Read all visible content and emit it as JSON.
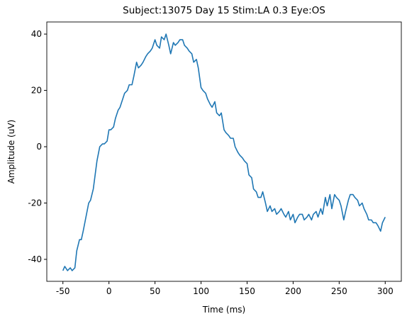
{
  "chart_data": {
    "type": "line",
    "title": "Subject:13075 Day 15 Stim:LA 0.3 Eye:OS",
    "xlabel": "Time (ms)",
    "ylabel": "Amplitude (uV)",
    "xlim": [
      -67.5,
      317.5
    ],
    "ylim": [
      -47.8,
      44.3
    ],
    "xticks": [
      -50,
      0,
      50,
      100,
      150,
      200,
      250,
      300
    ],
    "yticks": [
      -40,
      -20,
      0,
      20,
      40
    ],
    "series": [
      {
        "color": "#1f77b4",
        "x": [
          -50,
          -48,
          -45,
          -42,
          -40,
          -37,
          -35,
          -32,
          -30,
          -28,
          -25,
          -22,
          -20,
          -17,
          -15,
          -13,
          -10,
          -7,
          -5,
          -2,
          0,
          2,
          5,
          7,
          10,
          12,
          15,
          17,
          20,
          22,
          25,
          27,
          30,
          32,
          35,
          37,
          40,
          42,
          45,
          47,
          50,
          52,
          55,
          57,
          60,
          62,
          65,
          67,
          70,
          72,
          75,
          77,
          80,
          82,
          85,
          87,
          90,
          92,
          95,
          97,
          100,
          102,
          105,
          107,
          110,
          112,
          115,
          117,
          120,
          122,
          125,
          127,
          130,
          132,
          135,
          137,
          140,
          142,
          145,
          147,
          150,
          152,
          155,
          157,
          160,
          162,
          165,
          167,
          170,
          172,
          175,
          177,
          180,
          182,
          185,
          187,
          190,
          192,
          195,
          197,
          200,
          202,
          205,
          207,
          210,
          212,
          215,
          217,
          220,
          222,
          225,
          227,
          230,
          232,
          235,
          237,
          240,
          242,
          245,
          247,
          250,
          252,
          255,
          257,
          260,
          262,
          265,
          267,
          270,
          272,
          275,
          277,
          280,
          282,
          285,
          287,
          290,
          292,
          295,
          297,
          300
        ],
        "values": [
          -44,
          -42.5,
          -44,
          -43,
          -44,
          -43,
          -37,
          -33,
          -33,
          -30,
          -25,
          -20,
          -19,
          -15,
          -10,
          -5,
          0,
          1,
          1,
          2,
          6,
          6,
          7,
          10,
          13,
          14,
          17,
          19,
          20,
          22,
          22,
          25,
          30,
          28,
          29,
          30,
          32,
          33,
          34,
          35,
          38,
          36,
          35,
          39,
          38,
          40,
          36,
          33,
          37,
          36,
          37,
          38,
          38,
          36,
          35,
          34,
          33,
          30,
          31,
          28,
          21,
          20,
          19,
          17,
          15,
          14,
          16,
          12,
          11,
          12,
          6,
          5,
          4,
          3,
          3,
          0,
          -2,
          -3,
          -4,
          -5,
          -6,
          -10,
          -11,
          -15,
          -16,
          -18,
          -18,
          -16,
          -20,
          -23,
          -21,
          -23,
          -22,
          -24,
          -23,
          -22,
          -24,
          -25,
          -23,
          -26,
          -24,
          -27,
          -25,
          -24,
          -24,
          -26,
          -25,
          -24,
          -26,
          -24,
          -23,
          -25,
          -22,
          -24,
          -18,
          -21,
          -17,
          -22,
          -17,
          -18,
          -19,
          -21,
          -26,
          -23,
          -19,
          -17,
          -17,
          -18,
          -19,
          -21,
          -20,
          -22,
          -24,
          -26,
          -26,
          -27,
          -27,
          -28,
          -30,
          -27,
          -25
        ]
      }
    ]
  }
}
